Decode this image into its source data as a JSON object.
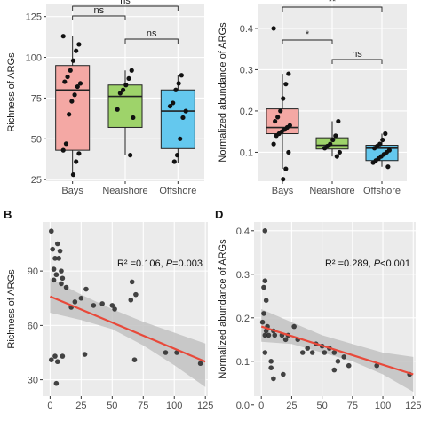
{
  "colors": {
    "panel_bg": "#ebebeb",
    "grid_major": "#ffffff",
    "axis_text": "#4d4d4d",
    "title_text": "#1a1a1a",
    "box_bays": "#f4a8a4",
    "box_nearshore": "#9ed36a",
    "box_offshore": "#64c8ee",
    "point": "#111111",
    "point_scatter": "#333333",
    "fit_line": "#e8493a",
    "ci_band": "#c2c2c2"
  },
  "panel_labels": {
    "b": "B",
    "d": "D"
  },
  "chart_data": [
    {
      "id": "A",
      "type": "box",
      "categories": [
        "Bays",
        "Nearshore",
        "Offshore"
      ],
      "ylabel": "Richness of ARGs",
      "ylim": [
        24,
        133
      ],
      "yticks": [
        25,
        50,
        75,
        100,
        125
      ],
      "box_stats": [
        {
          "min": 28,
          "q1": 43,
          "median": 80,
          "q3": 95,
          "max": 113
        },
        {
          "min": 40,
          "q1": 57,
          "median": 76,
          "q3": 83,
          "max": 92
        },
        {
          "min": 35,
          "q1": 44,
          "median": 67,
          "q3": 80,
          "max": 89
        }
      ],
      "points": [
        [
          113,
          108,
          104,
          98,
          92,
          88,
          85,
          84,
          82,
          77,
          73,
          65,
          47,
          43,
          41,
          36,
          28
        ],
        [
          92,
          87,
          83,
          80,
          78,
          68,
          63,
          40
        ],
        [
          89,
          84,
          80,
          72,
          70,
          67,
          63,
          50,
          40,
          36
        ]
      ],
      "significance": [
        {
          "pair": [
            0,
            1
          ],
          "label": "ns"
        },
        {
          "pair": [
            1,
            2
          ],
          "label": "ns"
        },
        {
          "pair": [
            0,
            2
          ],
          "label": "ns"
        }
      ]
    },
    {
      "id": "C",
      "type": "box",
      "categories": [
        "Bays",
        "Nearshore",
        "Offshore"
      ],
      "ylabel": "Normalized abundance of ARGs",
      "ylim": [
        0.03,
        0.46
      ],
      "yticks": [
        0.1,
        0.2,
        0.3,
        0.4
      ],
      "box_stats": [
        {
          "min": 0.06,
          "q1": 0.145,
          "median": 0.16,
          "q3": 0.205,
          "max": 0.29
        },
        {
          "min": 0.09,
          "q1": 0.108,
          "median": 0.117,
          "q3": 0.135,
          "max": 0.175
        },
        {
          "min": 0.065,
          "q1": 0.08,
          "median": 0.11,
          "q3": 0.117,
          "max": 0.145
        }
      ],
      "points": [
        [
          0.4,
          0.29,
          0.265,
          0.23,
          0.2,
          0.185,
          0.175,
          0.165,
          0.16,
          0.155,
          0.15,
          0.145,
          0.14,
          0.12,
          0.1,
          0.06,
          0.035
        ],
        [
          0.175,
          0.14,
          0.13,
          0.12,
          0.115,
          0.11,
          0.1,
          0.09
        ],
        [
          0.145,
          0.13,
          0.12,
          0.115,
          0.11,
          0.105,
          0.1,
          0.095,
          0.09,
          0.085,
          0.08,
          0.075,
          0.065
        ]
      ],
      "significance": [
        {
          "pair": [
            0,
            1
          ],
          "label": "*"
        },
        {
          "pair": [
            1,
            2
          ],
          "label": "ns"
        },
        {
          "pair": [
            0,
            2
          ],
          "label": "**"
        }
      ]
    },
    {
      "id": "B",
      "type": "scatter",
      "ylabel": "Richness of ARGs",
      "xlabel": "",
      "xlim": [
        -6,
        127
      ],
      "ylim": [
        21,
        117
      ],
      "xticks": [
        0,
        25,
        50,
        75,
        100,
        125
      ],
      "yticks": [
        30,
        60,
        90
      ],
      "annotation": {
        "prefix": "R² =0.106, ",
        "pvar": "P",
        "pval": "=0.003"
      },
      "fit": {
        "x": [
          0,
          125
        ],
        "y": [
          76,
          40
        ]
      },
      "ci": {
        "x": [
          0,
          25,
          50,
          75,
          100,
          125
        ],
        "upper": [
          86,
          77,
          69,
          62,
          56,
          50
        ],
        "lower": [
          67,
          63,
          58,
          49,
          38,
          26
        ]
      },
      "points": [
        [
          1,
          112
        ],
        [
          2,
          102
        ],
        [
          3,
          91
        ],
        [
          3,
          85
        ],
        [
          4,
          97
        ],
        [
          5,
          88
        ],
        [
          6,
          105
        ],
        [
          7,
          97
        ],
        [
          8,
          101
        ],
        [
          9,
          90
        ],
        [
          9,
          83
        ],
        [
          10,
          86
        ],
        [
          13,
          81
        ],
        [
          20,
          73
        ],
        [
          17,
          70
        ],
        [
          25,
          75
        ],
        [
          29,
          80
        ],
        [
          35,
          71
        ],
        [
          42,
          72
        ],
        [
          52,
          69
        ],
        [
          50,
          71
        ],
        [
          65,
          74
        ],
        [
          66,
          84
        ],
        [
          69,
          77
        ],
        [
          68,
          41
        ],
        [
          1,
          41
        ],
        [
          4,
          43
        ],
        [
          5,
          28
        ],
        [
          6,
          40
        ],
        [
          10,
          43
        ],
        [
          28,
          44
        ],
        [
          93,
          45
        ],
        [
          102,
          45
        ],
        [
          121,
          39
        ]
      ]
    },
    {
      "id": "D",
      "type": "scatter",
      "ylabel": "Normalized abundance of ARGs",
      "xlabel": "",
      "xlim": [
        -6,
        127
      ],
      "ylim": [
        0.02,
        0.42
      ],
      "xticks": [
        0,
        25,
        50,
        75,
        100,
        125
      ],
      "yticks": [
        0.0,
        0.1,
        0.2,
        0.3,
        0.4
      ],
      "annotation": {
        "prefix": "R² =0.289, ",
        "pvar": "P",
        "pval": "<0.001"
      },
      "fit": {
        "x": [
          0,
          125
        ],
        "y": [
          0.18,
          0.07
        ]
      },
      "ci": {
        "x": [
          0,
          25,
          50,
          75,
          100,
          125
        ],
        "upper": [
          0.22,
          0.19,
          0.16,
          0.14,
          0.12,
          0.11
        ],
        "lower": [
          0.145,
          0.14,
          0.12,
          0.1,
          0.07,
          0.03
        ]
      },
      "points": [
        [
          3,
          0.4
        ],
        [
          2,
          0.27
        ],
        [
          3,
          0.285
        ],
        [
          4,
          0.24
        ],
        [
          2,
          0.21
        ],
        [
          1,
          0.19
        ],
        [
          5,
          0.18
        ],
        [
          4,
          0.17
        ],
        [
          6,
          0.16
        ],
        [
          3,
          0.16
        ],
        [
          10,
          0.17
        ],
        [
          11,
          0.16
        ],
        [
          17,
          0.16
        ],
        [
          20,
          0.15
        ],
        [
          22,
          0.16
        ],
        [
          27,
          0.18
        ],
        [
          30,
          0.15
        ],
        [
          34,
          0.12
        ],
        [
          38,
          0.13
        ],
        [
          42,
          0.12
        ],
        [
          45,
          0.14
        ],
        [
          50,
          0.135
        ],
        [
          52,
          0.12
        ],
        [
          56,
          0.13
        ],
        [
          60,
          0.12
        ],
        [
          63,
          0.1
        ],
        [
          68,
          0.11
        ],
        [
          72,
          0.09
        ],
        [
          3,
          0.12
        ],
        [
          8,
          0.1
        ],
        [
          10,
          0.06
        ],
        [
          8,
          0.085
        ],
        [
          18,
          0.07
        ],
        [
          60,
          0.08
        ],
        [
          95,
          0.09
        ],
        [
          122,
          0.07
        ]
      ]
    }
  ]
}
